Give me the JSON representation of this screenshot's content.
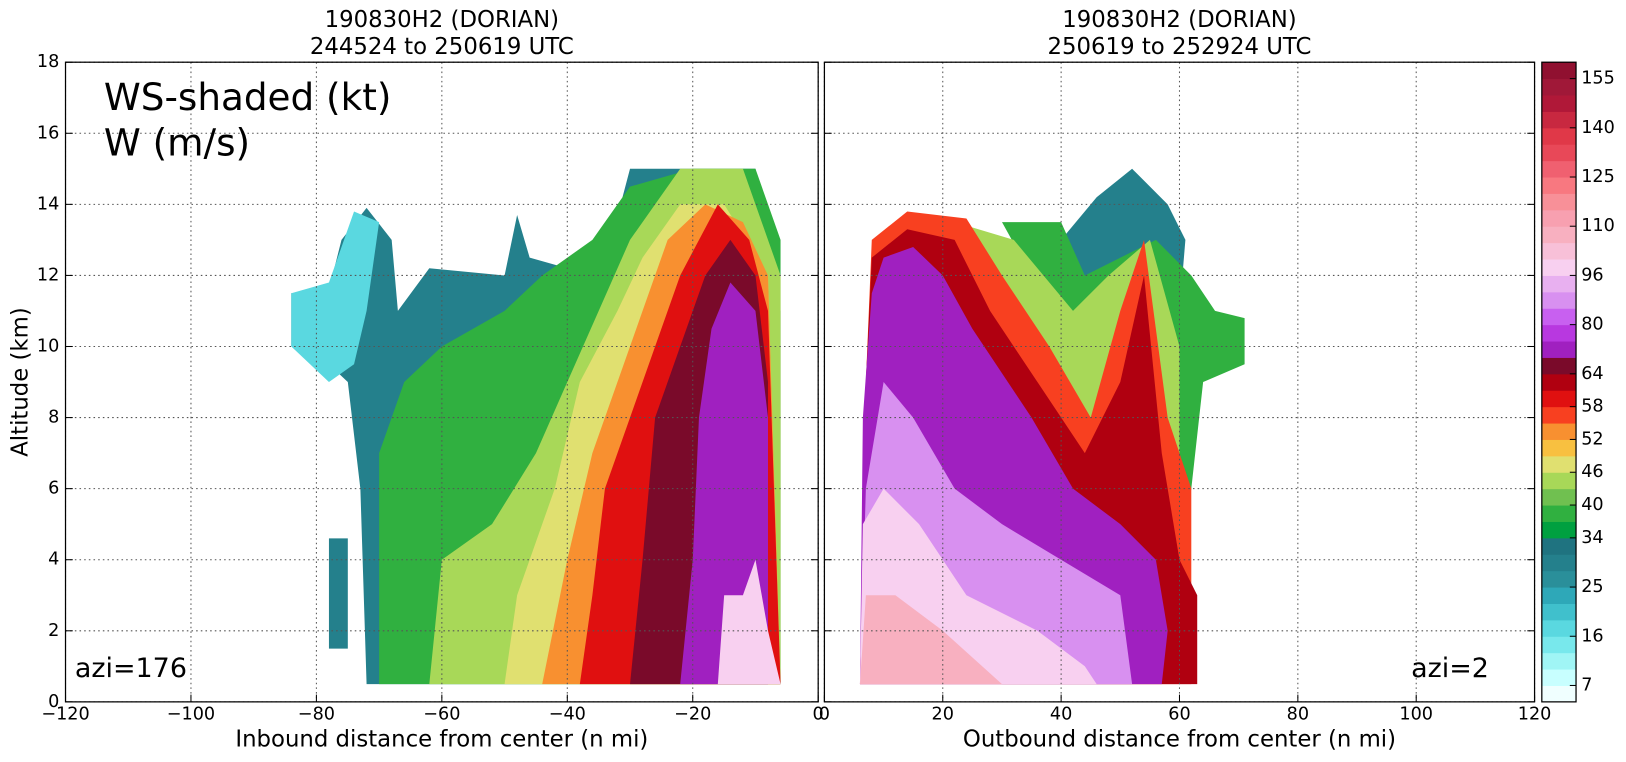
{
  "chart_data": {
    "type": "contour",
    "panels": [
      {
        "title": [
          "190830H2 (DORIAN)",
          "244524 to 250619 UTC"
        ],
        "xlabel": "Inbound distance from center (n mi)",
        "ylabel": "Altitude (km)",
        "xlim": [
          -120,
          0
        ],
        "xticks": [
          {
            "value": -120,
            "label": "−120"
          },
          {
            "value": -100,
            "label": "−100"
          },
          {
            "value": -80,
            "label": "−80"
          },
          {
            "value": -60,
            "label": "−60"
          },
          {
            "value": -40,
            "label": "−40"
          },
          {
            "value": -20,
            "label": "−20"
          },
          0
        ],
        "ylim": [
          0,
          18
        ],
        "yticks": [
          0,
          2,
          4,
          6,
          8,
          10,
          12,
          14,
          16,
          18
        ],
        "ytick_labels": true,
        "grid": true,
        "annotations": [
          "WS-shaded (kt)",
          "W (m/s)"
        ],
        "azimuth": "azi=176",
        "regions": [
          {
            "value": 28,
            "points": [
              [
                -84,
                11.5
              ],
              [
                -84,
                10
              ],
              [
                -80,
                10
              ],
              [
                -78,
                9.5
              ],
              [
                -75,
                9
              ],
              [
                -73,
                6
              ],
              [
                -72,
                0.5
              ],
              [
                -6,
                0.5
              ],
              [
                -6,
                11
              ],
              [
                -10,
                15
              ],
              [
                -30,
                15
              ],
              [
                -33,
                13
              ],
              [
                -40,
                12.2
              ],
              [
                -46,
                12.5
              ],
              [
                -48,
                13.7
              ],
              [
                -50,
                12
              ],
              [
                -62,
                12.2
              ],
              [
                -67,
                11
              ],
              [
                -68,
                13
              ],
              [
                -72,
                13.9
              ],
              [
                -76,
                13
              ],
              [
                -78,
                11.6
              ]
            ]
          },
          {
            "value": 28,
            "points": [
              [
                -78,
                1.5
              ],
              [
                -78,
                4.6
              ],
              [
                -75,
                4.6
              ],
              [
                -75,
                1.5
              ]
            ]
          },
          {
            "value": 18,
            "points": [
              [
                -84,
                11.5
              ],
              [
                -84,
                10
              ],
              [
                -78,
                9
              ],
              [
                -74,
                9.5
              ],
              [
                -72,
                11
              ],
              [
                -70,
                13.5
              ],
              [
                -74,
                13.8
              ],
              [
                -78,
                11.8
              ]
            ]
          },
          {
            "value": 37,
            "points": [
              [
                -70,
                0.5
              ],
              [
                -70,
                7
              ],
              [
                -66,
                9
              ],
              [
                -60,
                10
              ],
              [
                -50,
                11
              ],
              [
                -44,
                12
              ],
              [
                -36,
                13
              ],
              [
                -30,
                14.5
              ],
              [
                -20,
                15
              ],
              [
                -10,
                15
              ],
              [
                -6,
                13
              ],
              [
                -6,
                0.5
              ]
            ]
          },
          {
            "value": 43,
            "points": [
              [
                -62,
                0.5
              ],
              [
                -60,
                4
              ],
              [
                -52,
                5
              ],
              [
                -45,
                7
              ],
              [
                -40,
                9
              ],
              [
                -35,
                11
              ],
              [
                -30,
                13
              ],
              [
                -22,
                15
              ],
              [
                -12,
                15
              ],
              [
                -6,
                12
              ],
              [
                -6,
                0.5
              ]
            ]
          },
          {
            "value": 48,
            "points": [
              [
                -50,
                0.5
              ],
              [
                -48,
                3
              ],
              [
                -42,
                6
              ],
              [
                -38,
                9
              ],
              [
                -32,
                11
              ],
              [
                -28,
                12.5
              ],
              [
                -22,
                14
              ],
              [
                -15,
                14
              ],
              [
                -8,
                12
              ],
              [
                -6,
                0.5
              ]
            ]
          },
          {
            "value": 54,
            "points": [
              [
                -44,
                0.5
              ],
              [
                -40,
                4
              ],
              [
                -36,
                7
              ],
              [
                -32,
                9
              ],
              [
                -28,
                11
              ],
              [
                -24,
                13
              ],
              [
                -18,
                14
              ],
              [
                -12,
                13.5
              ],
              [
                -8,
                12
              ],
              [
                -6,
                0.5
              ]
            ]
          },
          {
            "value": 59,
            "points": [
              [
                -38,
                0.5
              ],
              [
                -36,
                3
              ],
              [
                -34,
                6
              ],
              [
                -30,
                8
              ],
              [
                -26,
                10
              ],
              [
                -22,
                12
              ],
              [
                -16,
                14
              ],
              [
                -11,
                13
              ],
              [
                -8,
                11
              ],
              [
                -6,
                0.5
              ]
            ]
          },
          {
            "value": 66,
            "points": [
              [
                -30,
                0.5
              ],
              [
                -28,
                4
              ],
              [
                -26,
                8
              ],
              [
                -22,
                10
              ],
              [
                -18,
                12
              ],
              [
                -14,
                13
              ],
              [
                -10,
                12
              ],
              [
                -8,
                9
              ],
              [
                -8,
                0.5
              ]
            ]
          },
          {
            "value": 72,
            "points": [
              [
                -22,
                0.5
              ],
              [
                -20,
                4
              ],
              [
                -19,
                8
              ],
              [
                -17,
                10.5
              ],
              [
                -14,
                11.8
              ],
              [
                -10,
                11
              ],
              [
                -8,
                8
              ],
              [
                -8,
                0.5
              ]
            ]
          },
          {
            "value": 100,
            "points": [
              [
                -16,
                0.5
              ],
              [
                -15,
                3
              ],
              [
                -12,
                3
              ],
              [
                -10,
                4
              ],
              [
                -8,
                2
              ],
              [
                -6,
                0.5
              ]
            ]
          }
        ]
      },
      {
        "title": [
          "190830H2 (DORIAN)",
          "250619 to 252924 UTC"
        ],
        "xlabel": "Outbound distance from center (n mi)",
        "xlim": [
          0,
          120
        ],
        "xticks": [
          0,
          20,
          40,
          60,
          80,
          100,
          120
        ],
        "ylim": [
          0,
          18
        ],
        "yticks": [
          0,
          2,
          4,
          6,
          8,
          10,
          12,
          14,
          16,
          18
        ],
        "ytick_labels": false,
        "grid": true,
        "azimuth": "azi=2",
        "regions": [
          {
            "value": 28,
            "points": [
              [
                40,
                13
              ],
              [
                46,
                14.2
              ],
              [
                52,
                15
              ],
              [
                58,
                14
              ],
              [
                61,
                13
              ],
              [
                60,
                11
              ],
              [
                55,
                10
              ],
              [
                45,
                11
              ]
            ]
          },
          {
            "value": 37,
            "points": [
              [
                30,
                13.5
              ],
              [
                40,
                13.5
              ],
              [
                44,
                12
              ],
              [
                56,
                13
              ],
              [
                62,
                12
              ],
              [
                66,
                11
              ],
              [
                71,
                10.8
              ],
              [
                71,
                9.5
              ],
              [
                64,
                9
              ],
              [
                62,
                6
              ],
              [
                60,
                4
              ],
              [
                45,
                9
              ],
              [
                35,
                12
              ]
            ]
          },
          {
            "value": 45,
            "points": [
              [
                22,
                13.5
              ],
              [
                32,
                13
              ],
              [
                42,
                11
              ],
              [
                48,
                12
              ],
              [
                55,
                13
              ],
              [
                60,
                10
              ],
              [
                60,
                6
              ],
              [
                50,
                6
              ],
              [
                40,
                9
              ],
              [
                28,
                11
              ]
            ]
          },
          {
            "value": 56,
            "points": [
              [
                8,
                13
              ],
              [
                14,
                13.8
              ],
              [
                24,
                13.6
              ],
              [
                30,
                12
              ],
              [
                38,
                10
              ],
              [
                45,
                8
              ],
              [
                50,
                11
              ],
              [
                54,
                13
              ],
              [
                58,
                8
              ],
              [
                62,
                6
              ],
              [
                62,
                0.5
              ],
              [
                6,
                0.5
              ],
              [
                7,
                9
              ]
            ]
          },
          {
            "value": 62,
            "points": [
              [
                8,
                12.5
              ],
              [
                14,
                13.3
              ],
              [
                22,
                13
              ],
              [
                28,
                11
              ],
              [
                36,
                9
              ],
              [
                44,
                7
              ],
              [
                50,
                9
              ],
              [
                54,
                12
              ],
              [
                57,
                7
              ],
              [
                60,
                4
              ],
              [
                63,
                3
              ],
              [
                63,
                0.5
              ],
              [
                6,
                0.5
              ],
              [
                7,
                9
              ]
            ]
          },
          {
            "value": 72,
            "points": [
              [
                8,
                11.5
              ],
              [
                10,
                12.5
              ],
              [
                15,
                12.8
              ],
              [
                20,
                12
              ],
              [
                25,
                10.5
              ],
              [
                35,
                8
              ],
              [
                42,
                6
              ],
              [
                50,
                5
              ],
              [
                56,
                4
              ],
              [
                58,
                2
              ],
              [
                57,
                0.5
              ],
              [
                6,
                0.5
              ],
              [
                6.5,
                8
              ]
            ]
          },
          {
            "value": 85,
            "points": [
              [
                6,
                0.5
              ],
              [
                7,
                6
              ],
              [
                10,
                9
              ],
              [
                15,
                8
              ],
              [
                22,
                6
              ],
              [
                30,
                5
              ],
              [
                40,
                4
              ],
              [
                50,
                3
              ],
              [
                52,
                0.5
              ]
            ]
          },
          {
            "value": 100,
            "points": [
              [
                6,
                0.5
              ],
              [
                6.5,
                5
              ],
              [
                10,
                6
              ],
              [
                16,
                5
              ],
              [
                24,
                3
              ],
              [
                36,
                2
              ],
              [
                44,
                1
              ],
              [
                46,
                0.5
              ]
            ]
          },
          {
            "value": 108,
            "points": [
              [
                6,
                0.5
              ],
              [
                7,
                3
              ],
              [
                12,
                3
              ],
              [
                20,
                2
              ],
              [
                30,
                0.5
              ]
            ]
          }
        ]
      }
    ],
    "colorbar": {
      "bounds": [
        4,
        7,
        10,
        13,
        16,
        19,
        22,
        25,
        28,
        31,
        34,
        37,
        40,
        43,
        46,
        49,
        52,
        55,
        58,
        61,
        64,
        69,
        75,
        80,
        85,
        91,
        96,
        101,
        105,
        110,
        115,
        120,
        125,
        130,
        135,
        140,
        145,
        150,
        155,
        160
      ],
      "colors": [
        "#f0ffff",
        "#c8ffff",
        "#a0f5f5",
        "#78e8ec",
        "#5ad8e0",
        "#40c0cc",
        "#2ea8b8",
        "#2a8f9a",
        "#24808c",
        "#1f7380",
        "#00a040",
        "#30b040",
        "#70c050",
        "#a8d858",
        "#e0e070",
        "#f8c040",
        "#f89030",
        "#f84020",
        "#e01010",
        "#b00010",
        "#7a0a2a",
        "#a020c0",
        "#b838e0",
        "#c860f0",
        "#d890f0",
        "#e8b0f0",
        "#f8d0f0",
        "#f8c0d8",
        "#f8b0c0",
        "#f8a0b0",
        "#f89098",
        "#f87880",
        "#f06070",
        "#e84858",
        "#e03848",
        "#c82840",
        "#b01838",
        "#a01838",
        "#901030"
      ],
      "ticks": [
        7,
        16,
        25,
        34,
        40,
        46,
        52,
        58,
        64,
        80,
        96,
        110,
        125,
        140,
        155
      ]
    }
  }
}
